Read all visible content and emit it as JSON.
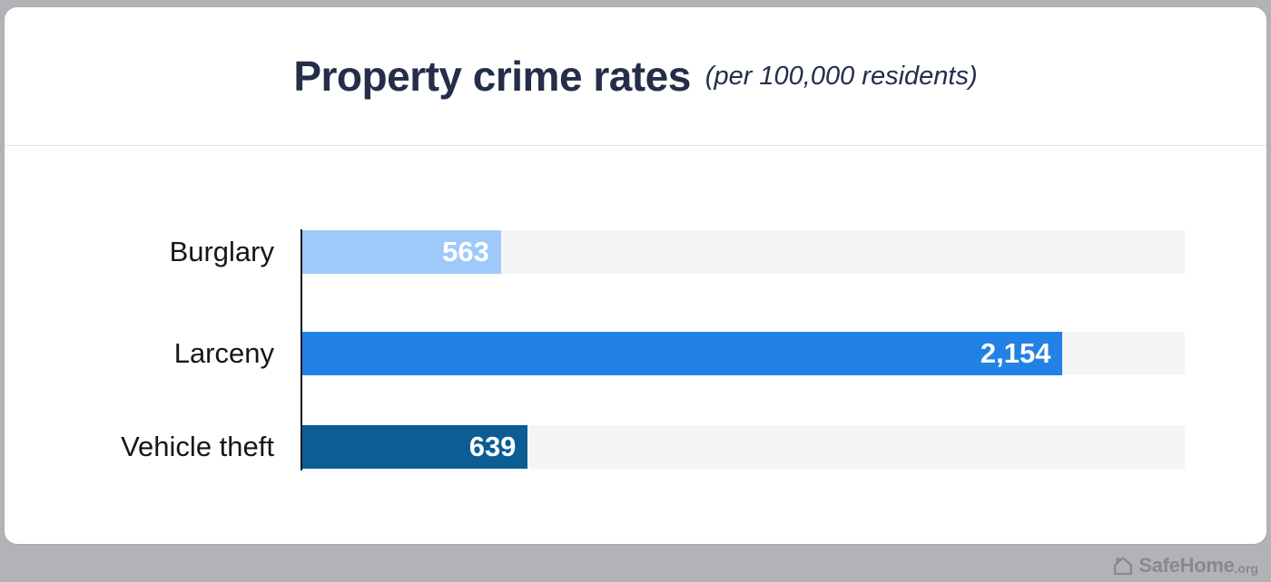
{
  "page": {
    "background_color": "#b1b3b6",
    "card_color": "#ffffff"
  },
  "header": {
    "title": "Property crime rates",
    "subtitle": "(per 100,000 residents)",
    "title_color": "#242e49"
  },
  "chart_data": {
    "type": "bar",
    "orientation": "horizontal",
    "title": "Property crime rates",
    "subtitle": "(per 100,000 residents)",
    "categories": [
      "Burglary",
      "Larceny",
      "Vehicle theft"
    ],
    "values": [
      563,
      2154,
      639
    ],
    "value_labels": [
      "563",
      "2,154",
      "639"
    ],
    "bar_colors": [
      "#9ecafb",
      "#2281e4",
      "#0b5d93"
    ],
    "track_color": "#f4f5f7",
    "axis_color": "#161616",
    "value_label_color": "#ffffff",
    "category_label_color": "#161616",
    "xlim": [
      0,
      2500
    ],
    "grid": false,
    "legend": false
  },
  "footer": {
    "icon": "house-icon",
    "brand": "SafeHome",
    "brand_suffix": ".org",
    "color": "#87898c"
  }
}
